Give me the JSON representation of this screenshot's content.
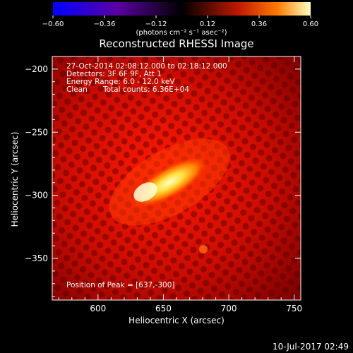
{
  "chart_data": {
    "type": "heatmap",
    "title": "Reconstructed RHESSI Image",
    "xlabel": "Heliocentric X (arcsec)",
    "ylabel": "Heliocentric Y (arcsec)",
    "xlim": [
      565,
      755
    ],
    "ylim": [
      -383,
      -190
    ],
    "xticks": [
      600,
      650,
      700,
      750
    ],
    "yticks": [
      -200,
      -250,
      -300,
      -350
    ],
    "colorbar": {
      "range": [
        -0.6,
        0.6
      ],
      "ticks": [
        "-0.60",
        "-0.36",
        "-0.12",
        "0.12",
        "0.36",
        "0.60"
      ],
      "unit_label": "(photons cm⁻² s⁻¹ asec⁻²)",
      "colors": [
        "#0000ff",
        "#5a00a0",
        "#000000",
        "#c01800",
        "#ff7a00",
        "#ffffc0"
      ]
    },
    "annotations": {
      "time_range": "27-Oct-2014 02:08:12.000 to 02:18:12.000",
      "detectors": "Detectors: 3F 6F 9F, Att 1",
      "energy_range": "Energy Range: 6.0 - 12.0 keV",
      "clean": "Clean",
      "total_counts": "Total counts: 6.36E+04",
      "peak": "Position of Peak = [637,-300]"
    },
    "source": {
      "peak_position": [
        637,
        -300
      ],
      "extent_from": [
        630,
        -302
      ],
      "extent_to": [
        672,
        -280
      ]
    }
  },
  "footer_date": "10-Jul-2017 02:49"
}
